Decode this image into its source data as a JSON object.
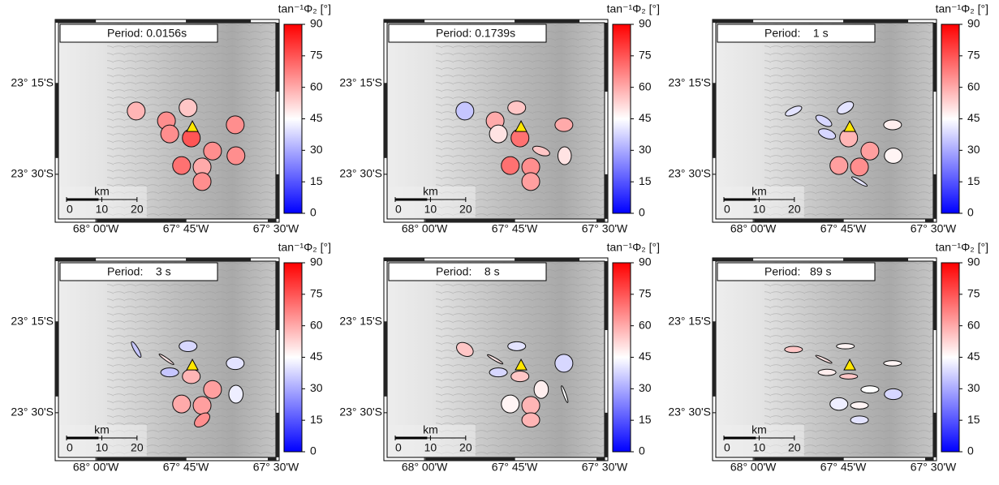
{
  "stations": {
    "lon": [
      -67.888,
      -67.744,
      -67.804,
      -67.613,
      -67.795,
      -67.735,
      -67.676,
      -67.611,
      -67.762,
      -67.705,
      -67.705
    ],
    "lat": [
      -23.326,
      -23.317,
      -23.353,
      -23.364,
      -23.389,
      -23.4,
      -23.436,
      -23.449,
      -23.476,
      -23.48,
      -23.52
    ]
  },
  "volcano": {
    "lon": -67.732,
    "lat": -23.369
  },
  "scalebar": {
    "label": "km",
    "ticks": [
      0,
      10,
      20
    ]
  },
  "chart_data": [
    {
      "type": "map",
      "title": "Period: 0.0156s",
      "colorbar_label": "tan⁻¹Φ₂ [°]",
      "colormap": [
        "#0000ff",
        "#ffffff",
        "#ff0000"
      ],
      "clim": [
        0,
        90
      ],
      "cticks": [
        0,
        15,
        30,
        45,
        60,
        75,
        90
      ],
      "xlim": [
        -68.104,
        -67.5
      ],
      "ylim": [
        -23.623,
        -23.083
      ],
      "xticks": [
        {
          "value": -68,
          "label": "68° 00'W"
        },
        {
          "value": -67.75,
          "label": "67° 45'W"
        },
        {
          "value": -67.5,
          "label": "67° 30'W"
        }
      ],
      "yticks": [
        {
          "value": -23.25,
          "label": "23° 15'S"
        },
        {
          "value": -23.5,
          "label": "23° 30'S"
        }
      ],
      "values": [
        58,
        55,
        65,
        65,
        65,
        75,
        65,
        65,
        70,
        60,
        65
      ],
      "aspect": [
        1,
        1,
        1,
        1,
        1,
        1,
        1,
        1,
        1,
        1,
        1
      ],
      "angle": [
        0,
        0,
        0,
        0,
        0,
        0,
        0,
        0,
        0,
        0,
        0
      ]
    },
    {
      "type": "map",
      "title": "Period: 0.1739s",
      "colorbar_label": "tan⁻¹Φ₂ [°]",
      "colormap": [
        "#0000ff",
        "#ffffff",
        "#ff0000"
      ],
      "clim": [
        0,
        90
      ],
      "cticks": [
        0,
        15,
        30,
        45,
        60,
        75,
        90
      ],
      "xlim": [
        -68.104,
        -67.5
      ],
      "ylim": [
        -23.623,
        -23.083
      ],
      "xticks": [
        {
          "value": -68,
          "label": "68° 00'W"
        },
        {
          "value": -67.75,
          "label": "67° 45'W"
        },
        {
          "value": -67.5,
          "label": "67° 30'W"
        }
      ],
      "yticks": [
        {
          "value": -23.25,
          "label": "23° 15'S"
        },
        {
          "value": -23.5,
          "label": "23° 30'S"
        }
      ],
      "values": [
        35,
        55,
        60,
        60,
        50,
        70,
        55,
        50,
        70,
        65,
        62
      ],
      "aspect": [
        1,
        0.75,
        1,
        0.75,
        1,
        1,
        0.45,
        0.75,
        1,
        1,
        1
      ],
      "angle": [
        0,
        0,
        0,
        0,
        0,
        0,
        -20,
        90,
        0,
        0,
        0
      ]
    },
    {
      "type": "map",
      "title": "Period:    1 s",
      "colorbar_label": "tan⁻¹Φ₂ [°]",
      "colormap": [
        "#0000ff",
        "#ffffff",
        "#ff0000"
      ],
      "clim": [
        0,
        90
      ],
      "cticks": [
        0,
        15,
        30,
        45,
        60,
        75,
        90
      ],
      "xlim": [
        -68.104,
        -67.5
      ],
      "ylim": [
        -23.623,
        -23.083
      ],
      "xticks": [
        {
          "value": -68,
          "label": "68° 00'W"
        },
        {
          "value": -67.75,
          "label": "67° 45'W"
        },
        {
          "value": -67.5,
          "label": "67° 30'W"
        }
      ],
      "yticks": [
        {
          "value": -23.25,
          "label": "23° 15'S"
        },
        {
          "value": -23.5,
          "label": "23° 30'S"
        }
      ],
      "values": [
        40,
        40,
        38,
        48,
        38,
        58,
        62,
        47,
        62,
        65,
        40
      ],
      "aspect": [
        0.4,
        0.55,
        0.45,
        0.55,
        0.5,
        1,
        1,
        0.85,
        1,
        1,
        0.2
      ],
      "angle": [
        25,
        30,
        -30,
        0,
        -20,
        0,
        0,
        0,
        0,
        0,
        -30
      ]
    },
    {
      "type": "map",
      "title": "Period:    3 s",
      "colorbar_label": "tan⁻¹Φ₂ [°]",
      "colormap": [
        "#0000ff",
        "#ffffff",
        "#ff0000"
      ],
      "clim": [
        0,
        90
      ],
      "cticks": [
        0,
        15,
        30,
        45,
        60,
        75,
        90
      ],
      "xlim": [
        -68.104,
        -67.5
      ],
      "ylim": [
        -23.623,
        -23.083
      ],
      "xticks": [
        {
          "value": -68,
          "label": "68° 00'W"
        },
        {
          "value": -67.75,
          "label": "67° 45'W"
        },
        {
          "value": -67.5,
          "label": "67° 30'W"
        }
      ],
      "yticks": [
        {
          "value": -23.25,
          "label": "23° 15'S"
        },
        {
          "value": -23.5,
          "label": "23° 30'S"
        }
      ],
      "values": [
        35,
        38,
        50,
        40,
        35,
        58,
        62,
        42,
        60,
        62,
        65
      ],
      "aspect": [
        0.25,
        0.6,
        0.15,
        0.7,
        0.5,
        0.8,
        1,
        0.8,
        1,
        1,
        0.6
      ],
      "angle": [
        -60,
        0,
        -35,
        0,
        0,
        0,
        0,
        90,
        0,
        0,
        40
      ]
    },
    {
      "type": "map",
      "title": "Period:    8 s",
      "colorbar_label": "tan⁻¹Φ₂ [°]",
      "colormap": [
        "#0000ff",
        "#ffffff",
        "#ff0000"
      ],
      "clim": [
        0,
        90
      ],
      "cticks": [
        0,
        15,
        30,
        45,
        60,
        75,
        90
      ],
      "xlim": [
        -68.104,
        -67.5
      ],
      "ylim": [
        -23.623,
        -23.083
      ],
      "xticks": [
        {
          "value": -68,
          "label": "68° 00'W"
        },
        {
          "value": -67.75,
          "label": "67° 45'W"
        },
        {
          "value": -67.5,
          "label": "67° 30'W"
        }
      ],
      "yticks": [
        {
          "value": -23.25,
          "label": "23° 15'S"
        },
        {
          "value": -23.5,
          "label": "23° 30'S"
        }
      ],
      "values": [
        55,
        40,
        50,
        38,
        38,
        55,
        48,
        45,
        47,
        58,
        58
      ],
      "aspect": [
        0.7,
        0.5,
        0.15,
        1,
        0.5,
        0.6,
        0.8,
        0.15,
        1,
        1,
        0.8
      ],
      "angle": [
        -30,
        0,
        -30,
        0,
        0,
        0,
        90,
        -70,
        0,
        0,
        0
      ]
    },
    {
      "type": "map",
      "title": "Period:   89 s",
      "colorbar_label": "tan⁻¹Φ₂ [°]",
      "colormap": [
        "#0000ff",
        "#ffffff",
        "#ff0000"
      ],
      "clim": [
        0,
        90
      ],
      "cticks": [
        0,
        15,
        30,
        45,
        60,
        75,
        90
      ],
      "xlim": [
        -68.104,
        -67.5
      ],
      "ylim": [
        -23.623,
        -23.083
      ],
      "xticks": [
        {
          "value": -68,
          "label": "68° 00'W"
        },
        {
          "value": -67.75,
          "label": "67° 45'W"
        },
        {
          "value": -67.5,
          "label": "67° 30'W"
        }
      ],
      "yticks": [
        {
          "value": -23.25,
          "label": "23° 15'S"
        },
        {
          "value": -23.5,
          "label": "23° 30'S"
        }
      ],
      "values": [
        55,
        47,
        50,
        47,
        48,
        55,
        45,
        38,
        42,
        47,
        40
      ],
      "aspect": [
        0.35,
        0.3,
        0.15,
        0.3,
        0.35,
        0.3,
        0.4,
        0.6,
        0.7,
        0.4,
        0.45
      ],
      "angle": [
        0,
        0,
        -25,
        0,
        0,
        0,
        0,
        0,
        0,
        0,
        0
      ]
    }
  ]
}
